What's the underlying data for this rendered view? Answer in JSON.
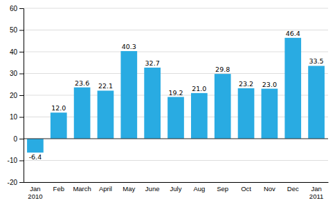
{
  "chart_data": {
    "type": "bar",
    "categories": [
      "Jan\n2010",
      "Feb",
      "March",
      "April",
      "May",
      "June",
      "July",
      "Aug",
      "Sep",
      "Oct",
      "Nov",
      "Dec",
      "Jan\n2011"
    ],
    "values": [
      -6.4,
      12.0,
      23.6,
      22.1,
      40.3,
      32.7,
      19.2,
      21.0,
      29.8,
      23.2,
      23.0,
      46.4,
      33.5
    ],
    "value_labels": [
      "-6.4",
      "12.0",
      "23.6",
      "22.1",
      "40.3",
      "32.7",
      "19.2",
      "21.0",
      "29.8",
      "23.2",
      "23.0",
      "46.4",
      "33.5"
    ],
    "color": "#29ABE2",
    "ylim": [
      -20,
      60
    ],
    "yticks": [
      -20,
      -10,
      0,
      10,
      20,
      30,
      40,
      50,
      60
    ],
    "grid": true,
    "data_labels": true
  }
}
